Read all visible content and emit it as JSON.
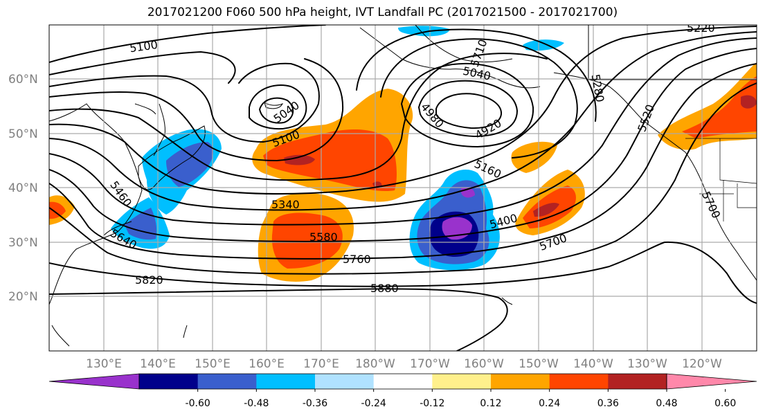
{
  "title": "2017021200 F060 500 hPa height, IVT Landfall PC (2017021500 - 2017021700)",
  "lat_labels": [
    "60°N",
    "50°N",
    "40°N",
    "30°N",
    "20°N"
  ],
  "lon_labels": [
    "130°E",
    "140°E",
    "150°E",
    "160°E",
    "170°E",
    "180°W",
    "170°W",
    "160°W",
    "150°W",
    "140°W",
    "130°W",
    "120°W"
  ],
  "contour_labels": [
    "5100",
    "5040",
    "5100",
    "5460",
    "5640",
    "5340",
    "5580",
    "5760",
    "5820",
    "5880",
    "5710",
    "5040",
    "4980",
    "4920",
    "5160",
    "5400",
    "5700",
    "5280",
    "5520",
    "5220",
    "5700"
  ],
  "colorbar": {
    "colors": [
      "#9932cc",
      "#00008b",
      "#3a5fcd",
      "#00bfff",
      "#b0e2ff",
      "#ffffff",
      "#fff08c",
      "#ffa500",
      "#ff4500",
      "#b22222",
      "#ff88aa"
    ],
    "tick_labels": [
      "-0.60",
      "-0.48",
      "-0.36",
      "-0.24",
      "-0.12",
      "0.12",
      "0.24",
      "0.36",
      "0.48",
      "0.60"
    ]
  }
}
